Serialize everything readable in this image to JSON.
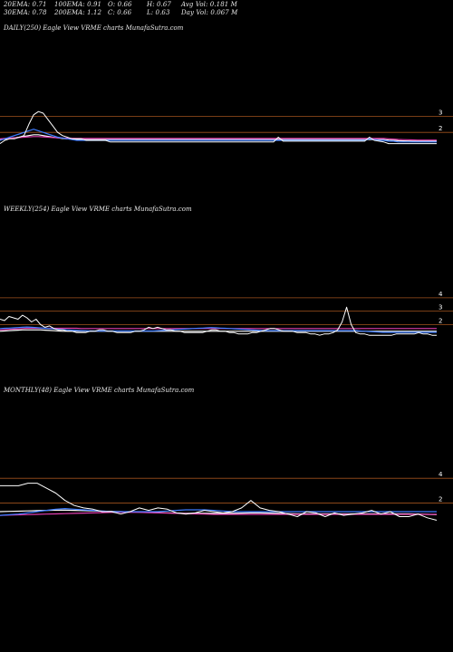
{
  "header": {
    "ema20": "20EMA: 0.71",
    "ema30": "30EMA: 0.78",
    "ema100": "100EMA: 0.91",
    "ema200": "200EMA: 1.12",
    "open": "O: 0.66",
    "close": "C: 0.66",
    "high": "H: 0.67",
    "low": "L: 0.63",
    "avg_vol": "Avg Vol: 0.181 M",
    "day_vol": "Day Vol: 0.067 M"
  },
  "panels": {
    "daily": {
      "label": "DAILY(250) Eagle   View  VRME charts MunafaSutra.com"
    },
    "weekly": {
      "label": "WEEKLY(254) Eagle   View  VRME charts MunafaSutra.com"
    },
    "monthly": {
      "label": "MONTHLY(48) Eagle   View  VRME charts MunafaSutra.com"
    }
  },
  "colors": {
    "price": "#ffffff",
    "ema_blue": "#3d7bff",
    "ema_pink": "#e23fb0",
    "ema_white": "#ffffff",
    "level_line": "#a0521e",
    "background": "#000000"
  },
  "chart_data": [
    {
      "type": "line",
      "title": "DAILY(250) Eagle   View  VRME charts MunafaSutra.com",
      "ylim": [
        0.2,
        3.2
      ],
      "levels": [
        3,
        2
      ],
      "series": [
        {
          "role": "price",
          "values": [
            1.3,
            1.5,
            1.6,
            1.6,
            1.7,
            1.8,
            2.5,
            3.1,
            3.3,
            3.2,
            2.8,
            2.4,
            2.0,
            1.8,
            1.7,
            1.6,
            1.6,
            1.6,
            1.5,
            1.5,
            1.5,
            1.5,
            1.5,
            1.4,
            1.4,
            1.4,
            1.4,
            1.4,
            1.4,
            1.4,
            1.4,
            1.4,
            1.4,
            1.4,
            1.4,
            1.4,
            1.4,
            1.4,
            1.4,
            1.4,
            1.4,
            1.4,
            1.4,
            1.4,
            1.4,
            1.4,
            1.4,
            1.4,
            1.4,
            1.4,
            1.4,
            1.4,
            1.4,
            1.4,
            1.4,
            1.4,
            1.4,
            1.4,
            1.7,
            1.45,
            1.45,
            1.45,
            1.45,
            1.45,
            1.45,
            1.45,
            1.45,
            1.45,
            1.45,
            1.45,
            1.45,
            1.45,
            1.45,
            1.45,
            1.45,
            1.45,
            1.45,
            1.7,
            1.5,
            1.45,
            1.4,
            1.3,
            1.3,
            1.3,
            1.3,
            1.3,
            1.3,
            1.3,
            1.3,
            1.3,
            1.3,
            1.3
          ]
        },
        {
          "role": "ema_blue",
          "values": [
            1.5,
            1.6,
            1.7,
            1.8,
            1.9,
            2.0,
            2.1,
            2.2,
            2.1,
            2.0,
            1.9,
            1.8,
            1.7,
            1.65,
            1.6,
            1.55,
            1.5,
            1.5,
            1.5,
            1.5,
            1.5,
            1.5,
            1.5,
            1.5,
            1.5,
            1.5,
            1.5,
            1.5,
            1.5,
            1.5,
            1.5,
            1.5,
            1.5,
            1.5,
            1.5,
            1.5,
            1.5,
            1.5,
            1.5,
            1.5,
            1.5,
            1.5,
            1.5,
            1.5,
            1.5,
            1.5,
            1.5,
            1.5,
            1.5,
            1.5,
            1.5,
            1.5,
            1.5,
            1.5,
            1.5,
            1.5,
            1.5,
            1.5,
            1.5,
            1.5,
            1.5,
            1.5,
            1.5,
            1.5,
            1.5,
            1.5,
            1.5,
            1.5,
            1.5,
            1.5,
            1.5,
            1.5,
            1.5,
            1.5,
            1.5,
            1.5,
            1.5,
            1.6,
            1.55,
            1.5,
            1.5,
            1.45,
            1.45,
            1.4,
            1.4,
            1.4,
            1.4,
            1.4,
            1.4,
            1.4,
            1.4,
            1.4
          ]
        },
        {
          "role": "ema_pink",
          "values": [
            1.6,
            1.62,
            1.64,
            1.66,
            1.68,
            1.7,
            1.72,
            1.74,
            1.74,
            1.72,
            1.7,
            1.68,
            1.66,
            1.65,
            1.64,
            1.63,
            1.62,
            1.62,
            1.62,
            1.62,
            1.62,
            1.62,
            1.62,
            1.62,
            1.62,
            1.62,
            1.62,
            1.62,
            1.62,
            1.62,
            1.62,
            1.62,
            1.62,
            1.62,
            1.62,
            1.62,
            1.62,
            1.62,
            1.62,
            1.62,
            1.62,
            1.62,
            1.62,
            1.62,
            1.62,
            1.62,
            1.62,
            1.62,
            1.62,
            1.62,
            1.62,
            1.62,
            1.62,
            1.62,
            1.62,
            1.62,
            1.62,
            1.62,
            1.62,
            1.62,
            1.62,
            1.62,
            1.62,
            1.62,
            1.62,
            1.62,
            1.62,
            1.62,
            1.62,
            1.62,
            1.62,
            1.62,
            1.62,
            1.62,
            1.62,
            1.62,
            1.62,
            1.62,
            1.62,
            1.62,
            1.62,
            1.6,
            1.58,
            1.56,
            1.55,
            1.54,
            1.53,
            1.52,
            1.52,
            1.52,
            1.52,
            1.52
          ]
        },
        {
          "role": "ema_white",
          "values": [
            1.55,
            1.58,
            1.62,
            1.66,
            1.7,
            1.75,
            1.8,
            1.85,
            1.85,
            1.8,
            1.75,
            1.7,
            1.66,
            1.62,
            1.6,
            1.58,
            1.56,
            1.55,
            1.55,
            1.55,
            1.55,
            1.55,
            1.55,
            1.55,
            1.55,
            1.55,
            1.55,
            1.55,
            1.55,
            1.55,
            1.55,
            1.55,
            1.55,
            1.55,
            1.55,
            1.55,
            1.55,
            1.55,
            1.55,
            1.55,
            1.55,
            1.55,
            1.55,
            1.55,
            1.55,
            1.55,
            1.55,
            1.55,
            1.55,
            1.55,
            1.55,
            1.55,
            1.55,
            1.55,
            1.55,
            1.55,
            1.55,
            1.55,
            1.55,
            1.55,
            1.55,
            1.55,
            1.55,
            1.55,
            1.55,
            1.55,
            1.55,
            1.55,
            1.55,
            1.55,
            1.55,
            1.55,
            1.55,
            1.55,
            1.55,
            1.55,
            1.55,
            1.55,
            1.55,
            1.55,
            1.55,
            1.52,
            1.5,
            1.48,
            1.47,
            1.46,
            1.45,
            1.45,
            1.45,
            1.45,
            1.45,
            1.45
          ]
        }
      ]
    },
    {
      "type": "line",
      "title": "WEEKLY(254) Eagle   View  VRME charts MunafaSutra.com",
      "ylim": [
        0.2,
        4.6
      ],
      "levels": [
        4,
        3,
        2
      ],
      "series": [
        {
          "role": "price",
          "values": [
            2.4,
            2.3,
            2.6,
            2.5,
            2.4,
            2.7,
            2.5,
            2.2,
            2.4,
            2.0,
            1.8,
            1.9,
            1.7,
            1.6,
            1.6,
            1.5,
            1.5,
            1.4,
            1.4,
            1.4,
            1.5,
            1.5,
            1.6,
            1.6,
            1.5,
            1.5,
            1.4,
            1.4,
            1.4,
            1.4,
            1.5,
            1.5,
            1.6,
            1.8,
            1.7,
            1.8,
            1.7,
            1.6,
            1.6,
            1.5,
            1.5,
            1.4,
            1.4,
            1.4,
            1.4,
            1.4,
            1.5,
            1.6,
            1.6,
            1.5,
            1.5,
            1.4,
            1.4,
            1.3,
            1.3,
            1.3,
            1.4,
            1.4,
            1.5,
            1.6,
            1.7,
            1.7,
            1.6,
            1.5,
            1.5,
            1.5,
            1.4,
            1.4,
            1.4,
            1.3,
            1.3,
            1.2,
            1.3,
            1.3,
            1.4,
            1.6,
            2.2,
            3.3,
            2.0,
            1.4,
            1.3,
            1.3,
            1.2,
            1.2,
            1.2,
            1.2,
            1.2,
            1.2,
            1.3,
            1.3,
            1.3,
            1.3,
            1.3,
            1.4,
            1.3,
            1.3,
            1.2,
            1.2
          ]
        },
        {
          "role": "ema_blue",
          "values": [
            1.7,
            1.72,
            1.74,
            1.76,
            1.78,
            1.8,
            1.82,
            1.8,
            1.78,
            1.75,
            1.72,
            1.7,
            1.68,
            1.65,
            1.62,
            1.6,
            1.58,
            1.56,
            1.55,
            1.54,
            1.53,
            1.52,
            1.52,
            1.52,
            1.52,
            1.52,
            1.52,
            1.52,
            1.52,
            1.52,
            1.52,
            1.52,
            1.52,
            1.52,
            1.52,
            1.54,
            1.56,
            1.58,
            1.6,
            1.62,
            1.64,
            1.66,
            1.68,
            1.7,
            1.72,
            1.74,
            1.76,
            1.78,
            1.76,
            1.74,
            1.72,
            1.7,
            1.68,
            1.66,
            1.64,
            1.62,
            1.6,
            1.58,
            1.56,
            1.55,
            1.55,
            1.55,
            1.55,
            1.55,
            1.55,
            1.55,
            1.55,
            1.55,
            1.55,
            1.55,
            1.55,
            1.55,
            1.55,
            1.55,
            1.55,
            1.55,
            1.55,
            1.55,
            1.55,
            1.55,
            1.52,
            1.5,
            1.48,
            1.46,
            1.44,
            1.42,
            1.42,
            1.42,
            1.42,
            1.42,
            1.42,
            1.42,
            1.42,
            1.42,
            1.42,
            1.42,
            1.42,
            1.42
          ]
        },
        {
          "role": "ema_pink",
          "values": [
            1.6,
            1.62,
            1.64,
            1.66,
            1.68,
            1.7,
            1.72,
            1.72,
            1.72,
            1.72,
            1.72,
            1.72,
            1.72,
            1.72,
            1.72,
            1.72,
            1.72,
            1.72,
            1.7,
            1.7,
            1.7,
            1.7,
            1.7,
            1.7,
            1.7,
            1.7,
            1.7,
            1.7,
            1.7,
            1.7,
            1.7,
            1.7,
            1.7,
            1.7,
            1.7,
            1.7,
            1.7,
            1.7,
            1.7,
            1.7,
            1.7,
            1.7,
            1.7,
            1.7,
            1.7,
            1.7,
            1.7,
            1.7,
            1.7,
            1.7,
            1.7,
            1.7,
            1.7,
            1.7,
            1.7,
            1.7,
            1.7,
            1.7,
            1.7,
            1.7,
            1.7,
            1.7,
            1.7,
            1.7,
            1.7,
            1.7,
            1.7,
            1.7,
            1.7,
            1.7,
            1.7,
            1.7,
            1.7,
            1.7,
            1.7,
            1.7,
            1.7,
            1.7,
            1.7,
            1.7,
            1.7,
            1.7,
            1.7,
            1.7,
            1.7,
            1.7,
            1.7,
            1.7,
            1.7,
            1.7,
            1.7,
            1.7,
            1.7,
            1.7,
            1.7,
            1.7,
            1.7,
            1.7
          ]
        },
        {
          "role": "ema_white",
          "values": [
            1.5,
            1.52,
            1.54,
            1.56,
            1.58,
            1.6,
            1.6,
            1.6,
            1.6,
            1.6,
            1.58,
            1.56,
            1.54,
            1.52,
            1.5,
            1.5,
            1.5,
            1.5,
            1.5,
            1.5,
            1.5,
            1.5,
            1.5,
            1.5,
            1.5,
            1.5,
            1.5,
            1.5,
            1.5,
            1.5,
            1.5,
            1.5,
            1.5,
            1.5,
            1.5,
            1.5,
            1.5,
            1.5,
            1.5,
            1.5,
            1.5,
            1.5,
            1.5,
            1.5,
            1.5,
            1.5,
            1.5,
            1.5,
            1.5,
            1.5,
            1.5,
            1.5,
            1.5,
            1.5,
            1.5,
            1.5,
            1.5,
            1.5,
            1.5,
            1.5,
            1.5,
            1.5,
            1.5,
            1.5,
            1.5,
            1.5,
            1.5,
            1.5,
            1.5,
            1.5,
            1.5,
            1.5,
            1.5,
            1.5,
            1.5,
            1.5,
            1.5,
            1.5,
            1.5,
            1.5,
            1.5,
            1.5,
            1.5,
            1.5,
            1.5,
            1.5,
            1.5,
            1.5,
            1.5,
            1.5,
            1.5,
            1.5,
            1.5,
            1.5,
            1.5,
            1.5,
            1.5,
            1.5
          ]
        }
      ]
    },
    {
      "type": "line",
      "title": "MONTHLY(48) Eagle   View  VRME charts MunafaSutra.com",
      "ylim": [
        0.2,
        4.6
      ],
      "levels": [
        4,
        2
      ],
      "series": [
        {
          "role": "price",
          "values": [
            3.4,
            3.4,
            3.4,
            3.6,
            3.6,
            3.2,
            2.8,
            2.2,
            1.8,
            1.6,
            1.5,
            1.3,
            1.3,
            1.1,
            1.3,
            1.6,
            1.4,
            1.6,
            1.5,
            1.2,
            1.1,
            1.2,
            1.4,
            1.3,
            1.2,
            1.3,
            1.6,
            2.2,
            1.6,
            1.4,
            1.3,
            1.1,
            0.9,
            1.3,
            1.2,
            0.9,
            1.2,
            1.0,
            1.1,
            1.2,
            1.4,
            1.1,
            1.3,
            0.9,
            0.9,
            1.1,
            0.8,
            0.6
          ]
        },
        {
          "role": "ema_blue",
          "values": [
            1.0,
            1.05,
            1.1,
            1.2,
            1.3,
            1.4,
            1.5,
            1.55,
            1.5,
            1.45,
            1.4,
            1.35,
            1.3,
            1.3,
            1.3,
            1.3,
            1.3,
            1.3,
            1.35,
            1.4,
            1.45,
            1.45,
            1.45,
            1.4,
            1.35,
            1.3,
            1.3,
            1.3,
            1.3,
            1.3,
            1.3,
            1.3,
            1.3,
            1.3,
            1.3,
            1.3,
            1.3,
            1.3,
            1.3,
            1.3,
            1.3,
            1.3,
            1.3,
            1.3,
            1.3,
            1.3,
            1.3,
            1.3
          ]
        },
        {
          "role": "ema_pink",
          "values": [
            1.0,
            1.02,
            1.04,
            1.06,
            1.08,
            1.1,
            1.12,
            1.14,
            1.16,
            1.18,
            1.2,
            1.22,
            1.24,
            1.24,
            1.24,
            1.24,
            1.22,
            1.2,
            1.18,
            1.16,
            1.14,
            1.12,
            1.1,
            1.08,
            1.08,
            1.08,
            1.08,
            1.08,
            1.08,
            1.08,
            1.08,
            1.08,
            1.08,
            1.08,
            1.08,
            1.08,
            1.08,
            1.08,
            1.08,
            1.08,
            1.08,
            1.08,
            1.08,
            1.08,
            1.08,
            1.08,
            1.08,
            1.08
          ]
        },
        {
          "role": "ema_white",
          "values": [
            1.3,
            1.32,
            1.34,
            1.36,
            1.38,
            1.4,
            1.42,
            1.42,
            1.4,
            1.38,
            1.36,
            1.34,
            1.32,
            1.3,
            1.28,
            1.26,
            1.24,
            1.22,
            1.2,
            1.18,
            1.16,
            1.16,
            1.16,
            1.16,
            1.16,
            1.16,
            1.18,
            1.2,
            1.2,
            1.18,
            1.16,
            1.14,
            1.12,
            1.12,
            1.12,
            1.12,
            1.12,
            1.12,
            1.12,
            1.12,
            1.12,
            1.12,
            1.12,
            1.12,
            1.12,
            1.1,
            1.08,
            1.06
          ]
        }
      ]
    }
  ]
}
